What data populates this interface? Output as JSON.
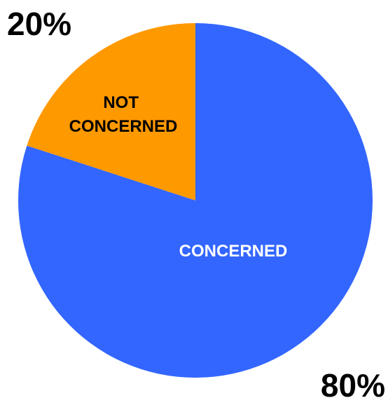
{
  "chart_data": {
    "type": "pie",
    "slices": [
      {
        "label": "CONCERNED",
        "value": 80,
        "value_label": "80%",
        "color": "#3366ff",
        "label_color": "#ffffff"
      },
      {
        "label": "NOT CONCERNED",
        "value": 20,
        "value_label": "20%",
        "color": "#ff9900",
        "label_color": "#000000"
      }
    ],
    "start_angle_deg": 0,
    "direction": "clockwise",
    "title": "",
    "legend": "none"
  }
}
